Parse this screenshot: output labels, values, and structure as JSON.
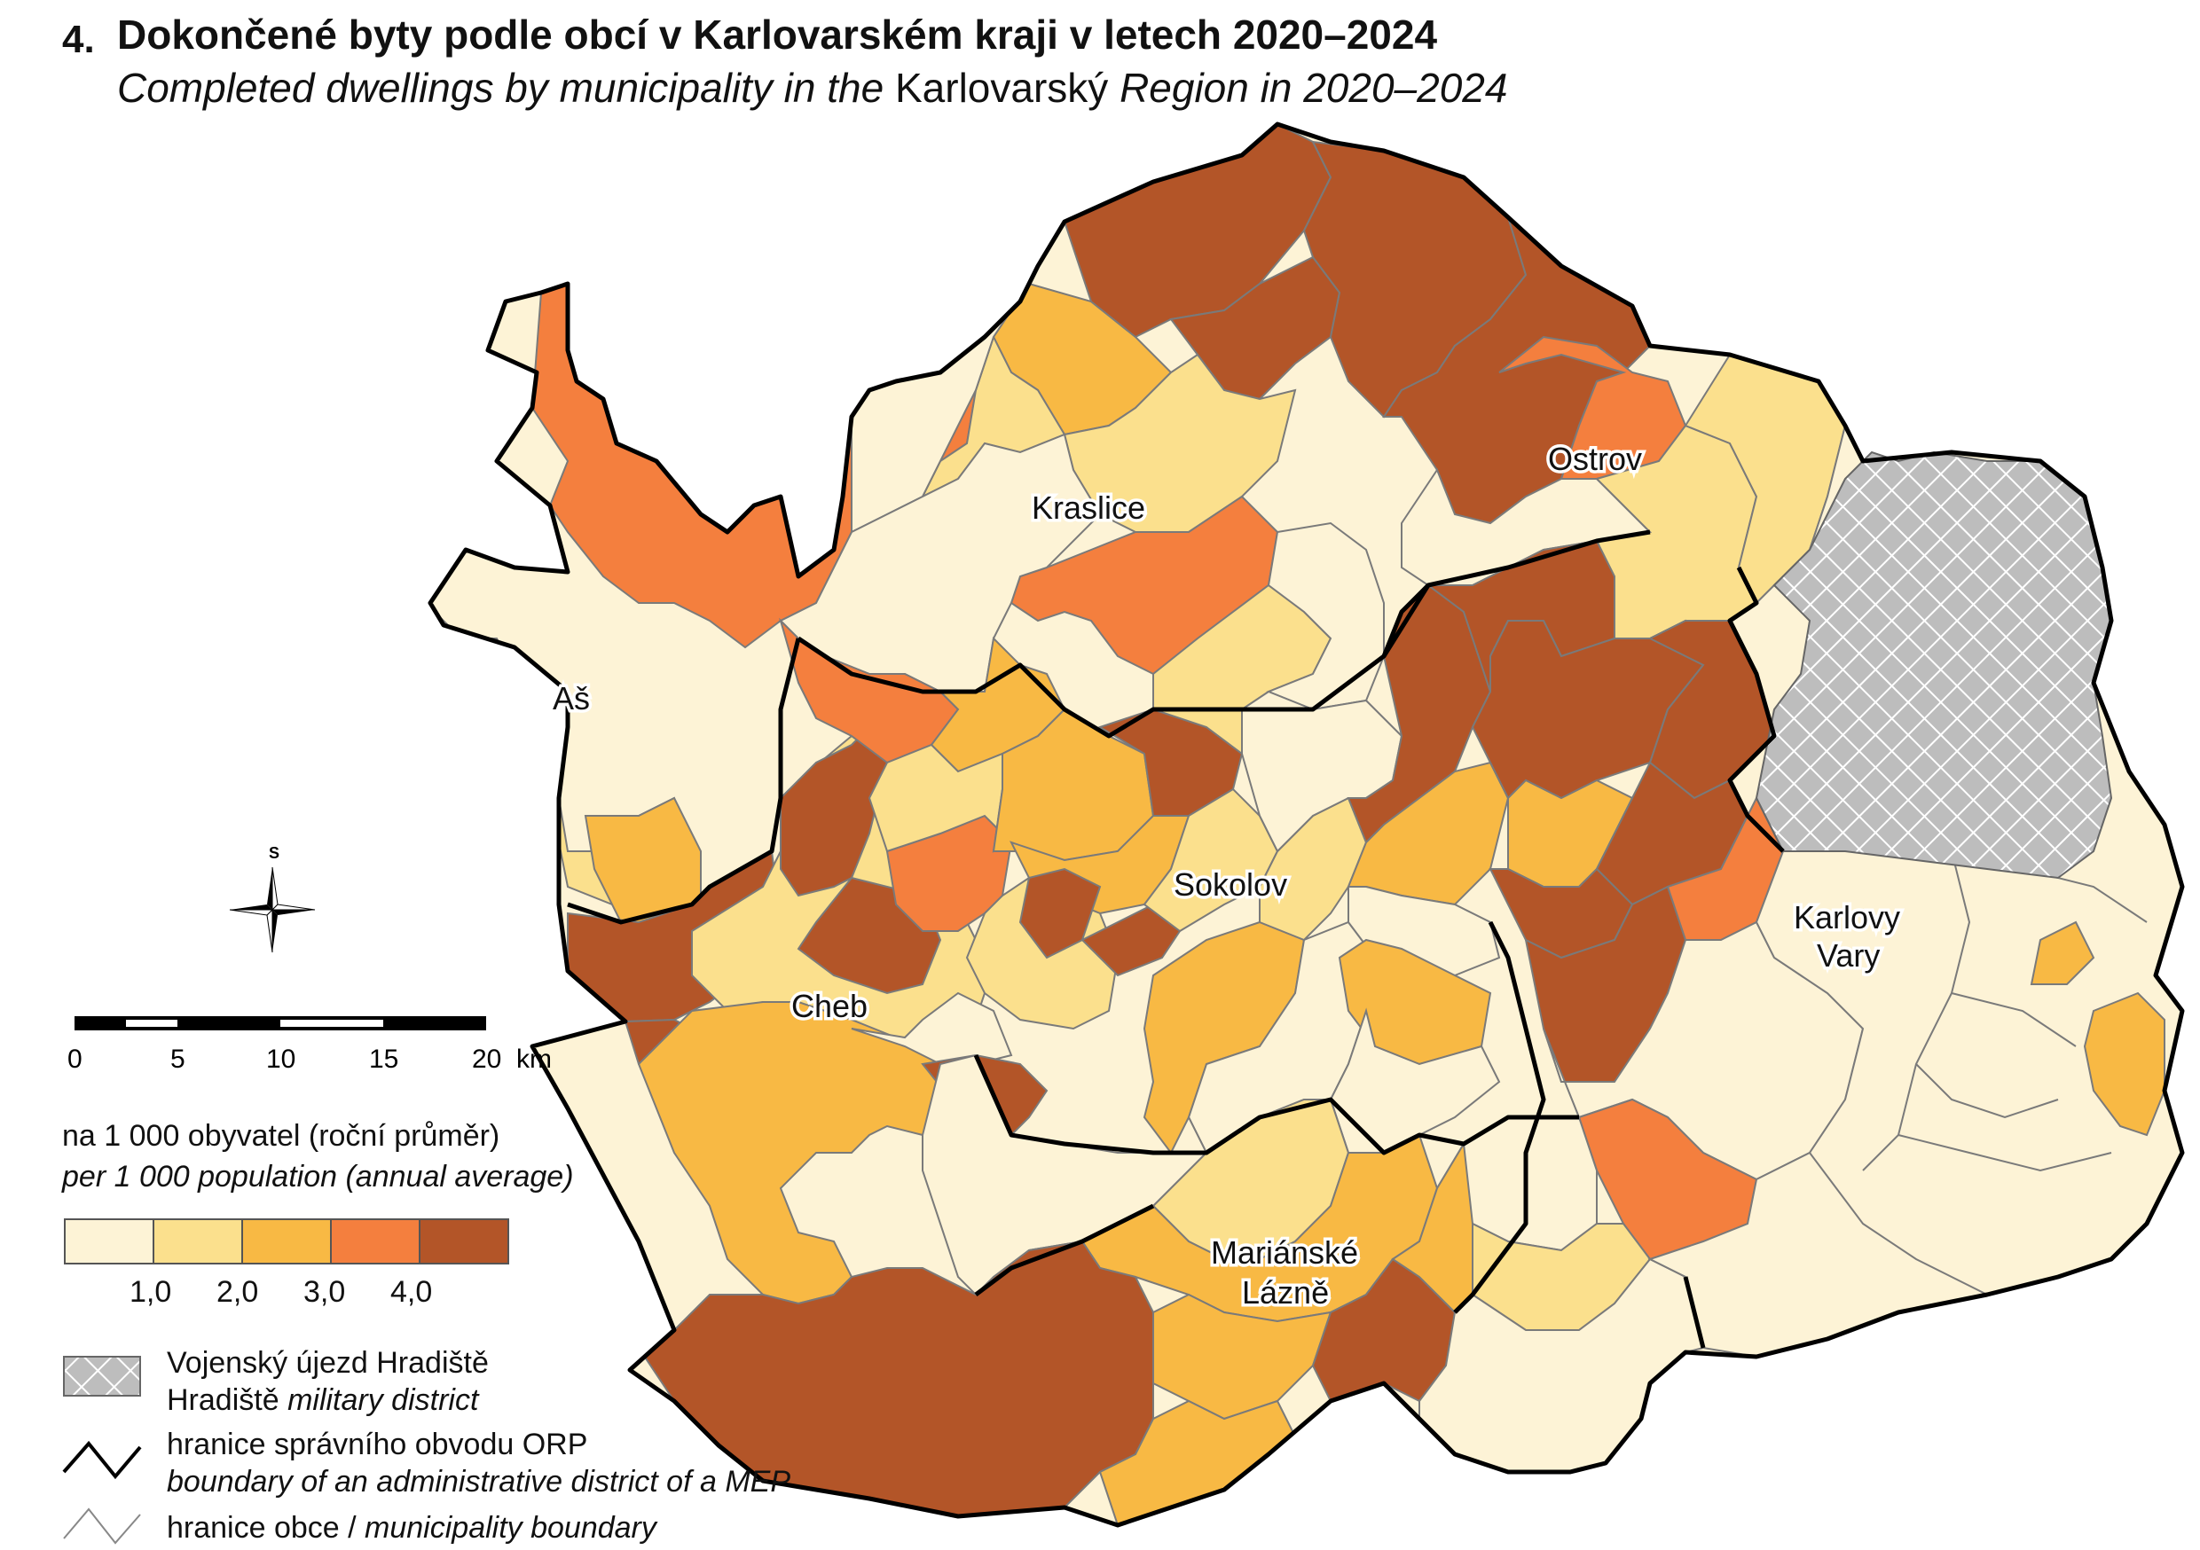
{
  "title": {
    "number": "4.",
    "czech": "Dokončené byty podle obcí v Karlovarském kraji v letech 2020–2024",
    "english_pre": "Completed dwellings by municipality in the ",
    "english_region": "Karlovarský",
    "english_post": " Region in 2020–2024"
  },
  "cities": [
    "Ostrov",
    "Kraslice",
    "Aš",
    "Sokolov",
    "Karlovy",
    "Vary",
    "Cheb",
    "Mariánské",
    "Lázně"
  ],
  "legend": {
    "unit_cz": "na 1 000 obyvatel (roční průměr)",
    "unit_en": "per 1 000 population (annual average)",
    "class_colors": [
      "#fdf3d6",
      "#fbe08d",
      "#f8b944",
      "#f47f3e",
      "#b35528"
    ],
    "breaks": [
      "1,0",
      "2,0",
      "3,0",
      "4,0"
    ],
    "military_cz": "Vojenský újezd Hradiště",
    "military_en_a": "Hradiště ",
    "military_en_b": "military district",
    "orp_cz": "hranice správního obvodu ORP",
    "orp_en": "boundary of an administrative district of a MEP",
    "muni_cz": "hranice obce / ",
    "muni_en": "municipality boundary"
  },
  "scale": {
    "labels": [
      "0",
      "5",
      "10",
      "15",
      "20"
    ],
    "unit": "km"
  },
  "north_label": "S",
  "colors": {
    "military_fill": "#bdbdbd",
    "orp_boundary": "#000000",
    "municipality_boundary": "#7a7a7a"
  }
}
